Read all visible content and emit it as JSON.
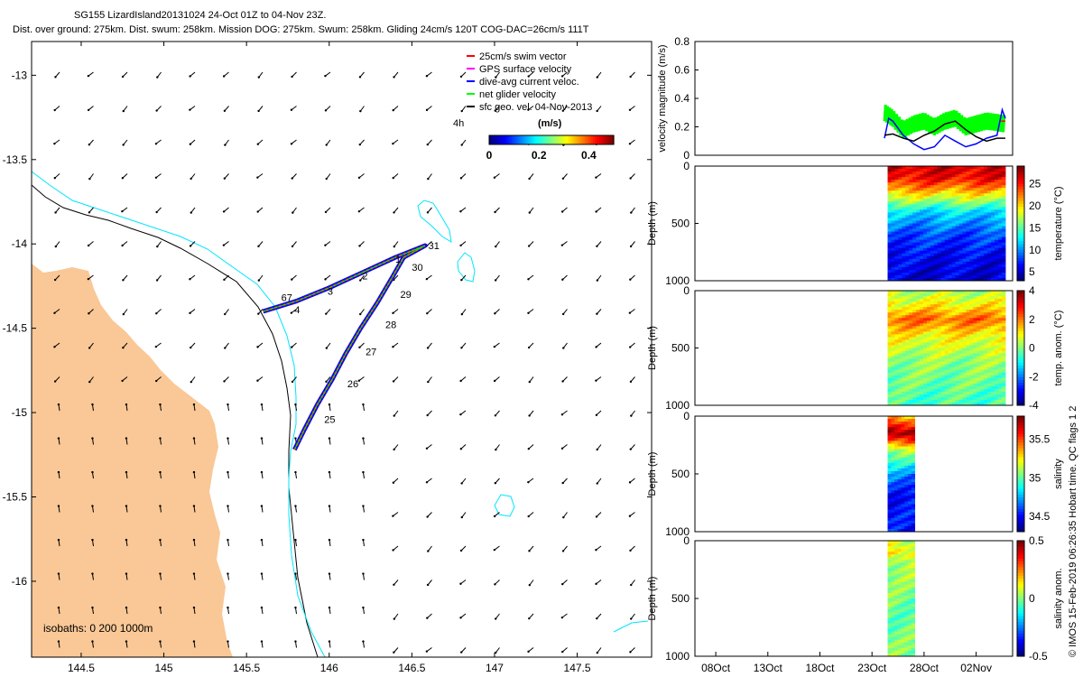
{
  "title_line1": "SG155 LizardIsland20131024 24-Oct 01Z to 04-Nov 23Z.",
  "title_line2": "Dist. over ground: 275km. Dist. swum: 258km. Mission DOG: 275km. Swum: 258km. Gliding 24cm/s 120T COG-DAC=26cm/s 111T",
  "side_note": "© IMOS 15-Feb-2019 06:26:35 Hobart time. QC flags 1  2",
  "colors": {
    "land": "#F9C896",
    "isobath_200": "#000000",
    "isobath_1000": "#00E5FF",
    "swim": "#FF0000",
    "gps": "#FF00FF",
    "dac": "#0000FF",
    "net": "#00FF00",
    "sfc": "#000000"
  },
  "chart_data": [
    {
      "type": "map",
      "xlim": [
        144.2,
        147.95
      ],
      "ylim": [
        -16.45,
        -12.8
      ],
      "xticks": [
        "144.5",
        "145",
        "145.5",
        "146",
        "146.5",
        "147",
        "147.5"
      ],
      "yticks": [
        "-13",
        "-13.5",
        "-14",
        "-14.5",
        "-15",
        "-15.5",
        "-16"
      ],
      "legend": {
        "position": "top-right",
        "entries": [
          "25cm/s swim vector",
          "GPS surface velocity",
          "dive-avg current veloc.",
          "net glider velocity",
          "sfc geo. vel. 04-Nov-2013"
        ],
        "speed_label": "4h"
      },
      "colorbar": {
        "label": "(m/s)",
        "ticks": [
          "0",
          "0.2",
          "0.4"
        ],
        "range": [
          0,
          0.5
        ]
      },
      "isobaths_label": "isobaths: 0   200  1000m",
      "track": [
        [
          145.79,
          -15.22
        ],
        [
          145.85,
          -15.1
        ],
        [
          145.93,
          -14.95
        ],
        [
          146.02,
          -14.8
        ],
        [
          146.1,
          -14.65
        ],
        [
          146.19,
          -14.5
        ],
        [
          146.29,
          -14.35
        ],
        [
          146.38,
          -14.2
        ],
        [
          146.45,
          -14.08
        ],
        [
          146.58,
          -14.01
        ],
        [
          146.4,
          -14.08
        ],
        [
          146.2,
          -14.17
        ],
        [
          146.0,
          -14.26
        ],
        [
          145.8,
          -14.34
        ],
        [
          145.6,
          -14.4
        ]
      ],
      "day_labels": [
        {
          "text": "25",
          "lon": 145.97,
          "lat": -15.06
        },
        {
          "text": "26",
          "lon": 146.11,
          "lat": -14.85
        },
        {
          "text": "27",
          "lon": 146.22,
          "lat": -14.66
        },
        {
          "text": "28",
          "lon": 146.34,
          "lat": -14.5
        },
        {
          "text": "29",
          "lon": 146.43,
          "lat": -14.32
        },
        {
          "text": "30",
          "lon": 146.5,
          "lat": -14.16
        },
        {
          "text": "31",
          "lon": 146.6,
          "lat": -14.03
        },
        {
          "text": "1",
          "lon": 146.4,
          "lat": -14.11
        },
        {
          "text": "2",
          "lon": 146.2,
          "lat": -14.21
        },
        {
          "text": "3",
          "lon": 145.99,
          "lat": -14.3
        },
        {
          "text": "67",
          "lon": 145.71,
          "lat": -14.34
        },
        {
          "text": "4",
          "lon": 145.79,
          "lat": -14.41
        }
      ]
    },
    {
      "type": "line",
      "ylabel": "velocity magnitude (m/s)",
      "ylim": [
        0,
        0.8
      ],
      "yticks": [
        "0",
        "0.2",
        "0.4",
        "0.6",
        "0.8"
      ],
      "series": [
        {
          "color": "#00FF00",
          "values": [
            [
              24.2,
              0.3
            ],
            [
              25,
              0.26
            ],
            [
              26,
              0.18
            ],
            [
              27,
              0.22
            ],
            [
              28,
              0.24
            ],
            [
              29,
              0.2
            ],
            [
              30,
              0.24
            ],
            [
              31,
              0.26
            ],
            [
              32,
              0.2
            ],
            [
              33,
              0.22
            ],
            [
              34,
              0.24
            ],
            [
              35,
              0.23
            ],
            [
              35.8,
              0.22
            ]
          ]
        },
        {
          "color": "#0000FF",
          "values": [
            [
              24.2,
              0.12
            ],
            [
              24.6,
              0.26
            ],
            [
              25,
              0.24
            ],
            [
              26,
              0.14
            ],
            [
              27,
              0.08
            ],
            [
              28,
              0.04
            ],
            [
              29,
              0.06
            ],
            [
              30,
              0.14
            ],
            [
              31,
              0.1
            ],
            [
              32,
              0.06
            ],
            [
              33,
              0.08
            ],
            [
              34,
              0.12
            ],
            [
              35,
              0.14
            ],
            [
              35.5,
              0.32
            ],
            [
              35.8,
              0.26
            ]
          ]
        },
        {
          "color": "#000000",
          "values": [
            [
              24.2,
              0.14
            ],
            [
              25,
              0.15
            ],
            [
              26,
              0.12
            ],
            [
              27,
              0.1
            ],
            [
              28,
              0.14
            ],
            [
              29,
              0.17
            ],
            [
              30,
              0.22
            ],
            [
              31,
              0.24
            ],
            [
              32,
              0.18
            ],
            [
              33,
              0.13
            ],
            [
              34,
              0.1
            ],
            [
              35,
              0.12
            ],
            [
              35.8,
              0.12
            ]
          ]
        },
        {
          "color": "#FF0000",
          "values": [
            [
              35.4,
              0.24
            ],
            [
              35.8,
              0.24
            ]
          ]
        }
      ]
    },
    {
      "type": "heatmap",
      "ylabel": "Depth (m)",
      "ylim": [
        1000,
        0
      ],
      "yticks": [
        "0",
        "500",
        "1000"
      ],
      "colorbar_label": "temperature (°C)",
      "colorbar_ticks": [
        "5",
        "10",
        "15",
        "20",
        "25"
      ],
      "crange": [
        3,
        29
      ],
      "x_range": [
        24.5,
        35.8
      ],
      "profile": [
        [
          0,
          27
        ],
        [
          100,
          26
        ],
        [
          200,
          22
        ],
        [
          300,
          17
        ],
        [
          400,
          12
        ],
        [
          600,
          8
        ],
        [
          800,
          6
        ],
        [
          1000,
          5
        ]
      ]
    },
    {
      "type": "heatmap",
      "ylabel": "Depth (m)",
      "ylim": [
        1000,
        0
      ],
      "yticks": [
        "0",
        "500",
        "1000"
      ],
      "colorbar_label": "temp. anom. (°C)",
      "colorbar_ticks": [
        "-4",
        "-2",
        "0",
        "2",
        "4"
      ],
      "crange": [
        -4,
        4
      ],
      "x_range": [
        24.5,
        35.8
      ],
      "profile": [
        [
          0,
          0.3
        ],
        [
          150,
          1.2
        ],
        [
          250,
          2.2
        ],
        [
          400,
          1.0
        ],
        [
          600,
          0.2
        ],
        [
          1000,
          -0.5
        ]
      ]
    },
    {
      "type": "heatmap",
      "ylabel": "Depth (m)",
      "ylim": [
        1000,
        0
      ],
      "yticks": [
        "0",
        "500",
        "1000"
      ],
      "colorbar_label": "salinity",
      "colorbar_ticks": [
        "34.5",
        "35",
        "35.5"
      ],
      "crange": [
        34.3,
        35.8
      ],
      "x_range": [
        24.5,
        27.1
      ],
      "profile": [
        [
          0,
          35.3
        ],
        [
          80,
          35.6
        ],
        [
          150,
          35.8
        ],
        [
          220,
          35.5
        ],
        [
          300,
          35.1
        ],
        [
          400,
          34.9
        ],
        [
          500,
          34.7
        ],
        [
          700,
          34.5
        ],
        [
          1000,
          34.5
        ]
      ]
    },
    {
      "type": "heatmap",
      "ylabel": "Depth (m)",
      "ylim": [
        1000,
        0
      ],
      "yticks": [
        "0",
        "500",
        "1000"
      ],
      "colorbar_label": "salinity anom.",
      "colorbar_ticks": [
        "-0.5",
        "0",
        "0.5"
      ],
      "crange": [
        -0.5,
        0.5
      ],
      "x_range": [
        24.5,
        27.1
      ],
      "profile": [
        [
          0,
          0.05
        ],
        [
          100,
          0.15
        ],
        [
          200,
          0.05
        ],
        [
          400,
          0
        ],
        [
          700,
          -0.02
        ],
        [
          1000,
          0
        ]
      ]
    },
    {
      "type": "axis",
      "xlim": [
        6,
        36.5
      ],
      "xticks": [
        "08Oct",
        "13Oct",
        "18Oct",
        "23Oct",
        "28Oct",
        "02Nov"
      ],
      "xtick_values": [
        8,
        13,
        18,
        23,
        28,
        33
      ]
    }
  ]
}
